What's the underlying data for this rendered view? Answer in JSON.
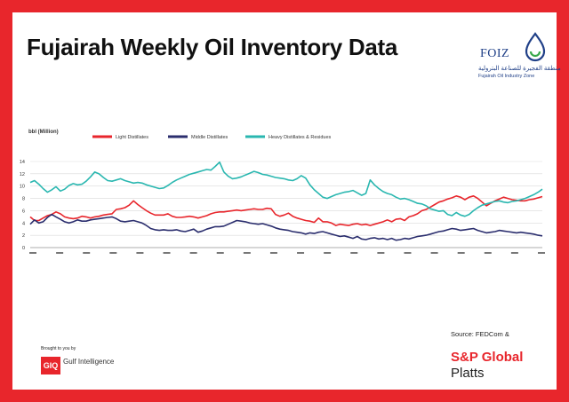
{
  "header": {
    "title": "Fujairah Weekly Oil Inventory Data"
  },
  "logo": {
    "mark": "FOIZ",
    "arabic": "منطقة الفجيرة للصناعة البترولية",
    "name": "Fujairah Oil Industry Zone",
    "icon": "drop-swirl-icon"
  },
  "footer": {
    "brought_by": "Brought to you by",
    "gi_mark": "GIQ",
    "gi_name": "Gulf Intelligence",
    "source": "Source: FEDCom &",
    "platts_line1": "S&P Global",
    "platts_line2": "Platts"
  },
  "colors": {
    "frame": "#e8262c",
    "light": "#e8262c",
    "middle": "#2b2e6e",
    "heavy": "#2ab7b0",
    "grid": "#d9d9d9"
  },
  "chart_data": {
    "type": "line",
    "ylabel": "bbl (Million)",
    "ylim": [
      0,
      14
    ],
    "yticks": [
      0,
      2,
      4,
      6,
      8,
      10,
      12,
      14
    ],
    "grid": true,
    "legend_position": "top",
    "x_tick_count": 20,
    "series": [
      {
        "name": "Light Distillates",
        "color": "#e8262c",
        "values": [
          5.0,
          4.4,
          4.4,
          4.8,
          5.2,
          5.4,
          5.8,
          5.5,
          5.0,
          4.8,
          4.7,
          4.8,
          5.1,
          5.0,
          4.8,
          5.0,
          5.1,
          5.3,
          5.4,
          5.5,
          6.2,
          6.3,
          6.5,
          6.9,
          7.6,
          7.0,
          6.5,
          6.0,
          5.6,
          5.3,
          5.3,
          5.3,
          5.5,
          5.1,
          4.9,
          4.9,
          5.0,
          5.1,
          5.0,
          4.8,
          5.0,
          5.2,
          5.5,
          5.7,
          5.8,
          5.8,
          5.9,
          6.0,
          6.1,
          6.0,
          6.1,
          6.2,
          6.3,
          6.2,
          6.2,
          6.4,
          6.3,
          5.4,
          5.1,
          5.3,
          5.6,
          5.1,
          4.8,
          4.6,
          4.4,
          4.3,
          4.1,
          4.8,
          4.2,
          4.2,
          4.0,
          3.6,
          3.8,
          3.7,
          3.6,
          3.8,
          3.9,
          3.7,
          3.8,
          3.6,
          3.8,
          4.0,
          4.2,
          4.5,
          4.2,
          4.6,
          4.7,
          4.4,
          5.0,
          5.2,
          5.5,
          6.0,
          6.2,
          6.6,
          7.0,
          7.4,
          7.6,
          7.9,
          8.1,
          8.4,
          8.2,
          7.8,
          8.2,
          8.4,
          8.0,
          7.4,
          6.8,
          7.2,
          7.6,
          7.9,
          8.2,
          8.0,
          7.8,
          7.7,
          7.6,
          7.6,
          7.8,
          7.9,
          8.1,
          8.3
        ]
      },
      {
        "name": "Middle Distillates",
        "color": "#2b2e6e",
        "values": [
          3.8,
          4.5,
          4.0,
          4.2,
          4.9,
          5.4,
          5.0,
          4.6,
          4.2,
          4.0,
          4.2,
          4.5,
          4.3,
          4.3,
          4.5,
          4.6,
          4.7,
          4.8,
          4.9,
          5.0,
          4.7,
          4.3,
          4.2,
          4.3,
          4.4,
          4.2,
          4.0,
          3.6,
          3.1,
          2.9,
          2.8,
          2.9,
          2.8,
          2.8,
          2.9,
          2.7,
          2.6,
          2.8,
          3.0,
          2.5,
          2.7,
          3.0,
          3.2,
          3.4,
          3.4,
          3.5,
          3.8,
          4.1,
          4.4,
          4.3,
          4.2,
          4.0,
          3.9,
          3.8,
          3.9,
          3.7,
          3.5,
          3.2,
          3.0,
          2.9,
          2.8,
          2.6,
          2.5,
          2.4,
          2.2,
          2.4,
          2.3,
          2.5,
          2.6,
          2.4,
          2.2,
          2.0,
          1.8,
          1.9,
          1.7,
          1.5,
          1.8,
          1.4,
          1.3,
          1.5,
          1.6,
          1.4,
          1.5,
          1.3,
          1.5,
          1.2,
          1.3,
          1.5,
          1.4,
          1.6,
          1.8,
          1.9,
          2.0,
          2.2,
          2.4,
          2.6,
          2.7,
          2.9,
          3.1,
          3.0,
          2.8,
          2.9,
          3.0,
          3.1,
          2.8,
          2.6,
          2.4,
          2.5,
          2.6,
          2.8,
          2.7,
          2.6,
          2.5,
          2.4,
          2.5,
          2.4,
          2.3,
          2.2,
          2.0,
          1.9
        ]
      },
      {
        "name": "Heavy Distillates & Residues",
        "color": "#2ab7b0",
        "values": [
          10.6,
          10.9,
          10.3,
          9.6,
          9.0,
          9.4,
          9.9,
          9.2,
          9.5,
          10.1,
          10.4,
          10.2,
          10.3,
          10.8,
          11.5,
          12.3,
          12.0,
          11.4,
          10.9,
          10.8,
          11.0,
          11.2,
          10.9,
          10.7,
          10.5,
          10.6,
          10.5,
          10.2,
          10.0,
          9.8,
          9.6,
          9.7,
          10.1,
          10.6,
          11.0,
          11.3,
          11.6,
          11.9,
          12.1,
          12.3,
          12.5,
          12.7,
          12.6,
          13.2,
          13.9,
          12.3,
          11.6,
          11.2,
          11.3,
          11.5,
          11.8,
          12.1,
          12.4,
          12.2,
          11.9,
          11.8,
          11.6,
          11.4,
          11.3,
          11.2,
          11.0,
          10.9,
          11.2,
          11.7,
          11.3,
          10.2,
          9.4,
          8.8,
          8.2,
          8.0,
          8.3,
          8.6,
          8.8,
          9.0,
          9.1,
          9.3,
          8.9,
          8.5,
          8.8,
          11.0,
          10.2,
          9.6,
          9.1,
          8.8,
          8.6,
          8.2,
          7.9,
          8.0,
          7.8,
          7.5,
          7.2,
          7.1,
          6.8,
          6.3,
          6.1,
          5.9,
          6.0,
          5.4,
          5.2,
          5.7,
          5.3,
          5.1,
          5.4,
          6.0,
          6.5,
          6.9,
          7.1,
          7.3,
          7.5,
          7.6,
          7.4,
          7.3,
          7.5,
          7.6,
          7.8,
          8.0,
          8.3,
          8.6,
          9.0,
          9.5
        ]
      }
    ]
  }
}
